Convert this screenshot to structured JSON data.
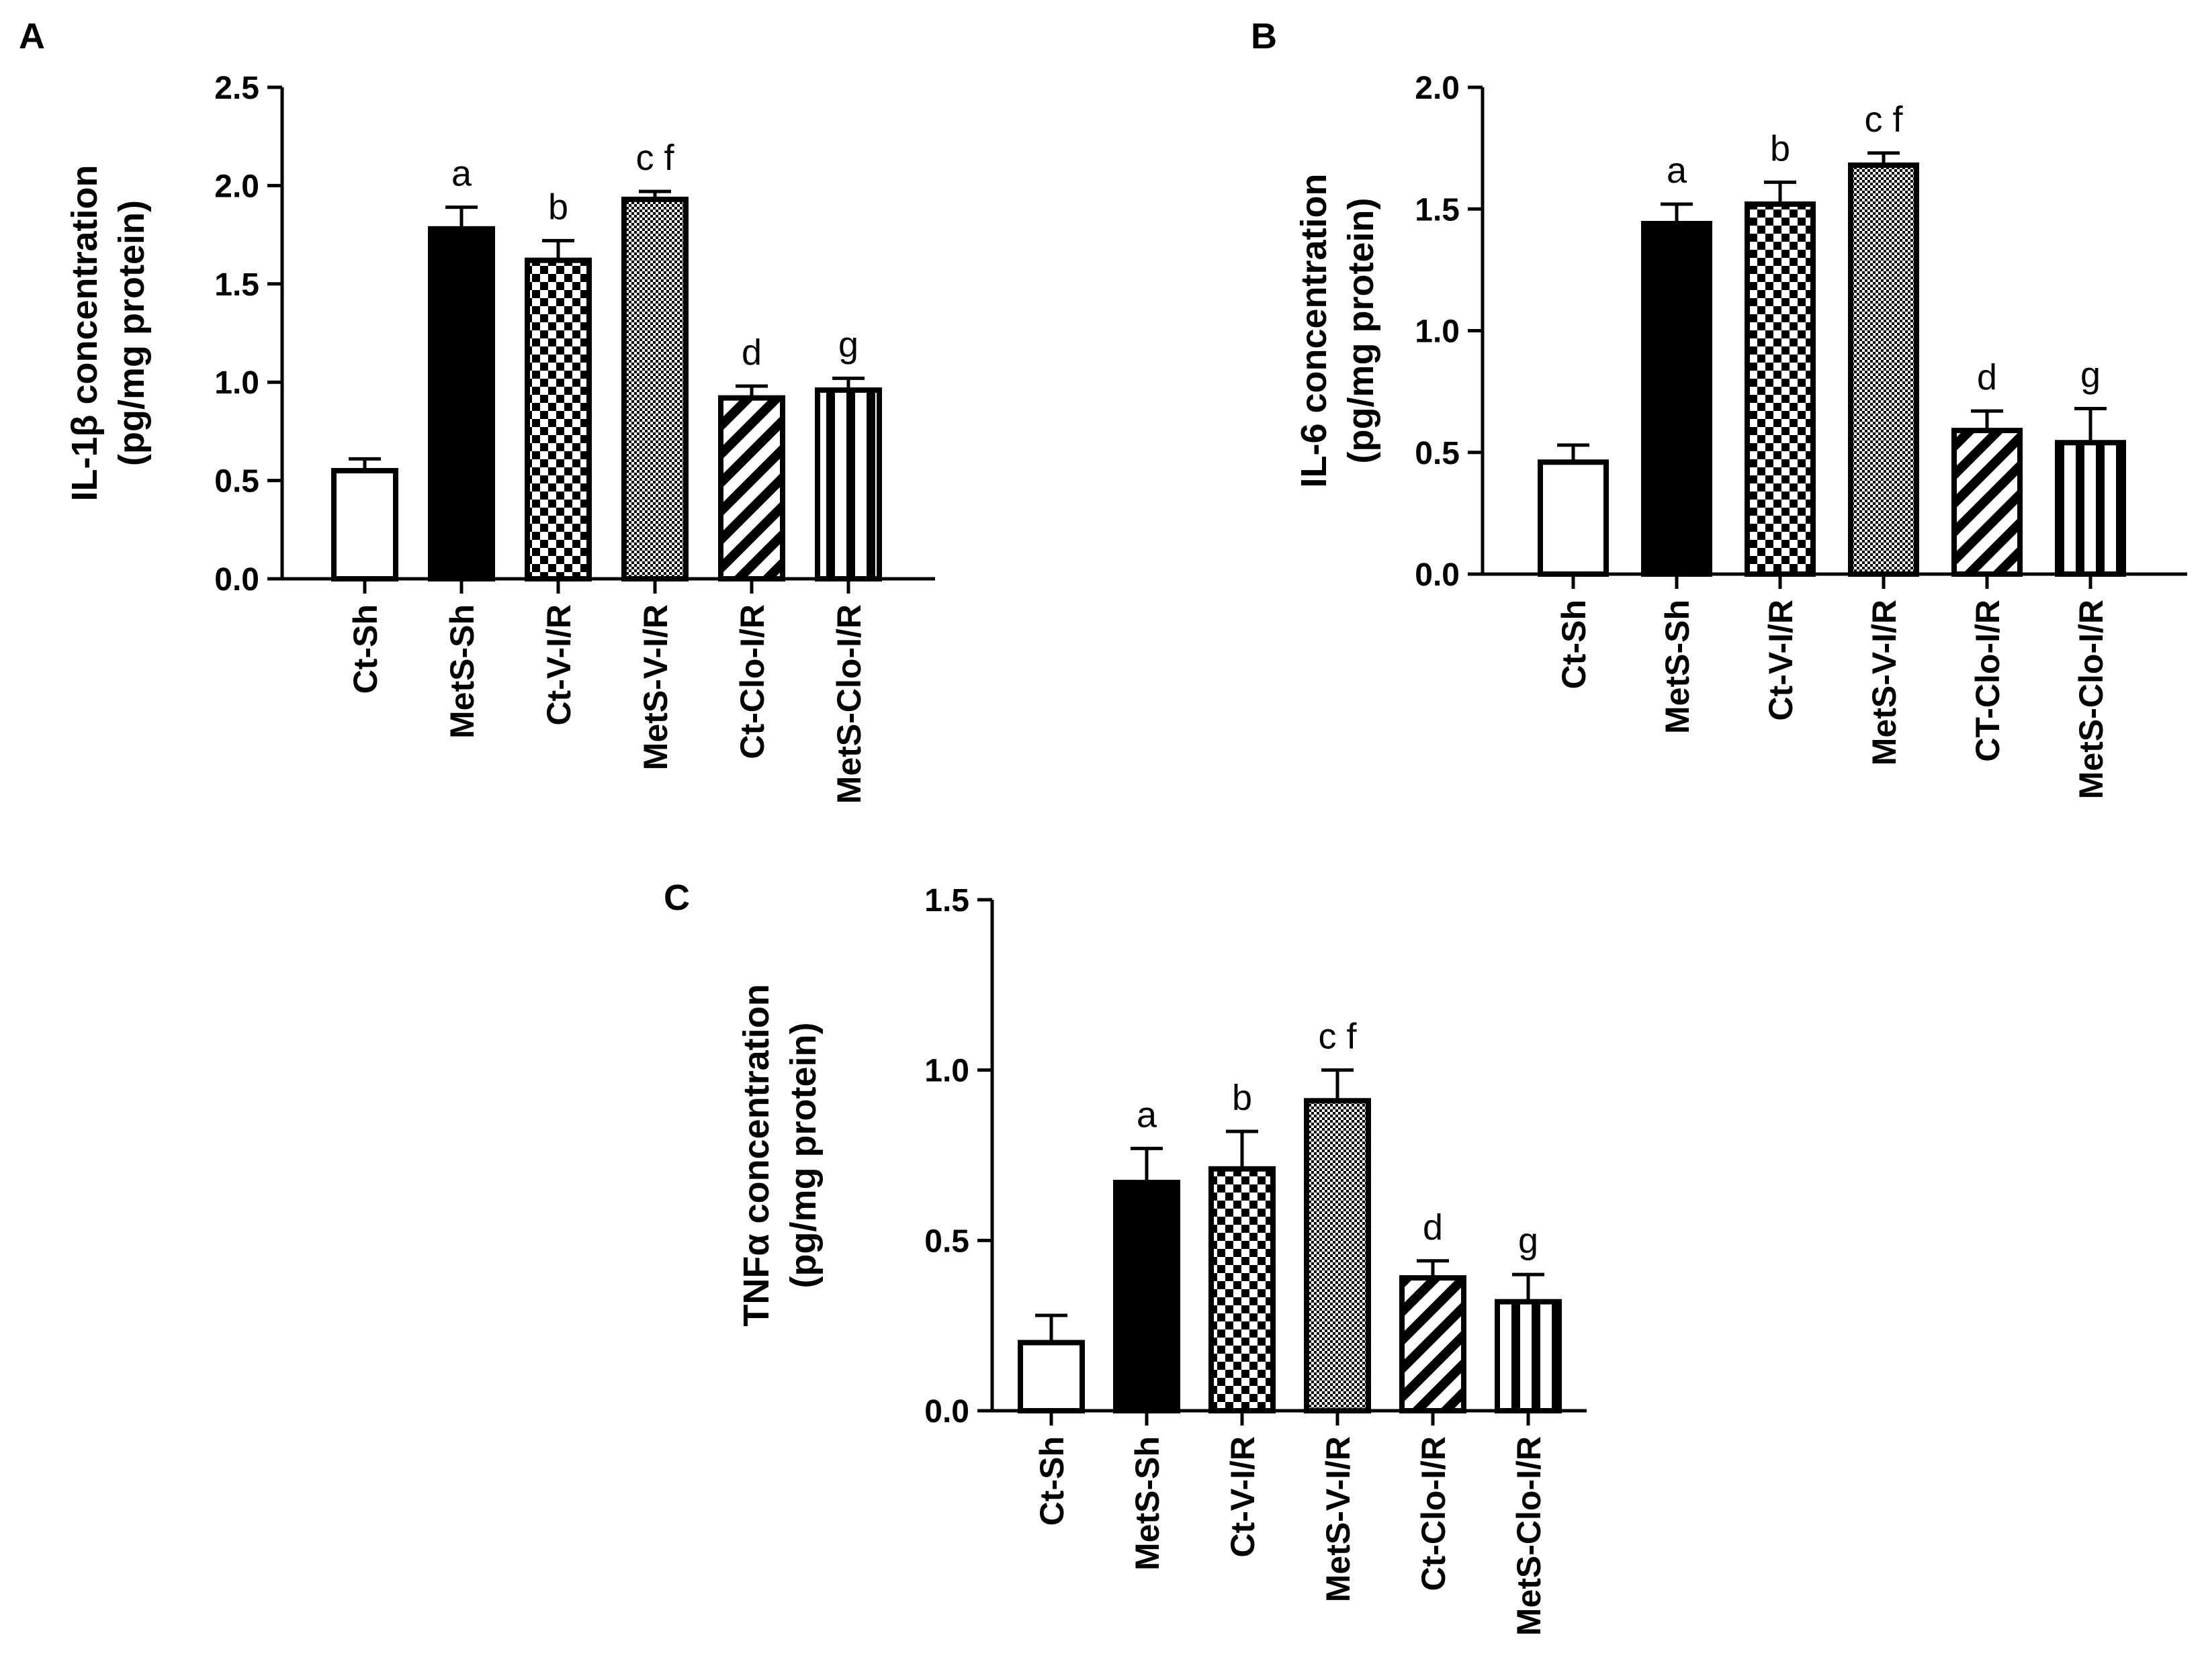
{
  "figure": {
    "panels": [
      "A",
      "B",
      "C"
    ]
  },
  "chart_data": [
    {
      "panel": "A",
      "type": "bar",
      "title": "",
      "ylabel_line1": "IL-1β concentration",
      "ylabel_line2": "(pg/mg protein)",
      "xlabel": "",
      "ylim": [
        0,
        2.5
      ],
      "yticks": [
        "0.0",
        "0.5",
        "1.0",
        "1.5",
        "2.0",
        "2.5"
      ],
      "categories": [
        "Ct-Sh",
        "MetS-Sh",
        "Ct-V-I/R",
        "MetS-V-I/R",
        "Ct-Clo-I/R",
        "MetS-Clo-I/R"
      ],
      "values": [
        0.55,
        1.78,
        1.62,
        1.93,
        0.92,
        0.96
      ],
      "errors": [
        0.06,
        0.11,
        0.1,
        0.04,
        0.06,
        0.06
      ],
      "sig_labels": [
        "",
        "a",
        "b",
        "c f",
        "d",
        "g"
      ]
    },
    {
      "panel": "B",
      "type": "bar",
      "title": "",
      "ylabel_line1": "IL-6 concentration",
      "ylabel_line2": "(pg/mg protein)",
      "xlabel": "",
      "ylim": [
        0,
        2.0
      ],
      "yticks": [
        "0.0",
        "0.5",
        "1.0",
        "1.5",
        "2.0"
      ],
      "categories": [
        "Ct-Sh",
        "MetS-Sh",
        "Ct-V-I/R",
        "MetS-V-I/R",
        "CT-Clo-I/R",
        "MetS-Clo-I/R"
      ],
      "values": [
        0.46,
        1.44,
        1.52,
        1.68,
        0.59,
        0.54
      ],
      "errors": [
        0.07,
        0.08,
        0.09,
        0.05,
        0.08,
        0.14
      ],
      "sig_labels": [
        "",
        "a",
        "b",
        "c f",
        "d",
        "g"
      ]
    },
    {
      "panel": "C",
      "type": "bar",
      "title": "",
      "ylabel_line1": "TNFα concentration",
      "ylabel_line2": "(pg/mg protein)",
      "xlabel": "",
      "ylim": [
        0,
        1.5
      ],
      "yticks": [
        "0.0",
        "0.5",
        "1.0",
        "1.5"
      ],
      "categories": [
        "Ct-Sh",
        "MetS-Sh",
        "Ct-V-I/R",
        "MetS-V-I/R",
        "Ct-Clo-I/R",
        "MetS-Clo-I/R"
      ],
      "values": [
        0.2,
        0.67,
        0.71,
        0.91,
        0.39,
        0.32
      ],
      "errors": [
        0.08,
        0.1,
        0.11,
        0.09,
        0.05,
        0.08
      ],
      "sig_labels": [
        "",
        "a",
        "b",
        "c f",
        "d",
        "g"
      ]
    }
  ],
  "patterns": [
    "empty",
    "solid",
    "checker",
    "fine-checker",
    "diagonal",
    "vertical"
  ],
  "colors": {
    "ink": "#000000",
    "background": "#ffffff"
  }
}
